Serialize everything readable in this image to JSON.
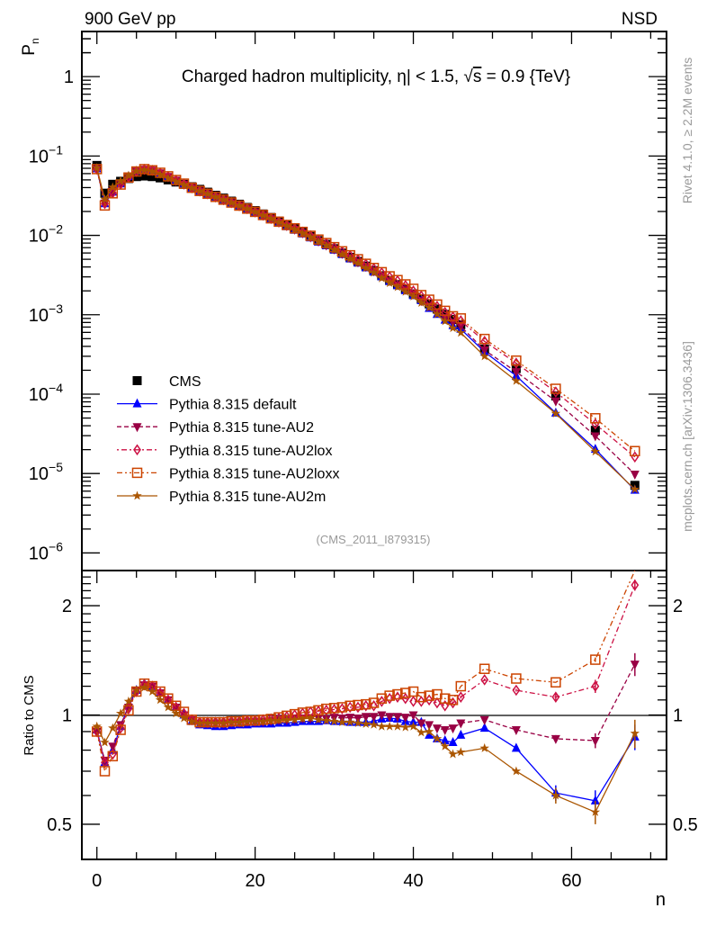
{
  "header": {
    "left": "900 GeV pp",
    "right": "NSD"
  },
  "side_labels": {
    "rivet": "Rivet 4.1.0, ≥ 2.2M events",
    "mcplots": "mcplots.cern.ch [arXiv:1306.3436]"
  },
  "chart_data": [
    {
      "type": "scatter",
      "panel": "main",
      "title": "Charged hadron multiplicity, η| < 1.5, √s = 0.9 {TeV}",
      "title_parts": {
        "prefix": "Charged hadron multiplicity, ",
        "eta": "η",
        "mid": "| < 1.5, ",
        "sqrt": "√",
        "s": "s",
        "suffix": " = 0.9 {TeV}"
      },
      "ylabel": "P",
      "ylabel_sub": "n",
      "xlabel": "n",
      "yscale": "log",
      "ylim": [
        6e-07,
        3.7
      ],
      "xlim": [
        -1.9,
        72
      ],
      "ytick_labels": [
        {
          "value": 1,
          "base": "1",
          "exp": ""
        },
        {
          "value": 0.1,
          "base": "10",
          "exp": "−1"
        },
        {
          "value": 0.01,
          "base": "10",
          "exp": "−2"
        },
        {
          "value": 0.001,
          "base": "10",
          "exp": "−3"
        },
        {
          "value": 0.0001,
          "base": "10",
          "exp": "−4"
        },
        {
          "value": 1e-05,
          "base": "10",
          "exp": "−5"
        },
        {
          "value": 1e-06,
          "base": "10",
          "exp": "−6"
        }
      ],
      "annotation": "(CMS_2011_I879315)",
      "legend_position": "lower-left",
      "x": [
        0,
        1,
        2,
        3,
        4,
        5,
        6,
        7,
        8,
        9,
        10,
        11,
        12,
        13,
        14,
        15,
        16,
        17,
        18,
        19,
        20,
        21,
        22,
        23,
        24,
        25,
        26,
        27,
        28,
        29,
        30,
        31,
        32,
        33,
        34,
        35,
        36,
        37,
        38,
        39,
        40,
        41,
        42,
        43,
        44,
        45,
        46,
        49,
        53,
        58,
        63,
        68
      ],
      "cms_values": [
        0.076,
        0.034,
        0.044,
        0.048,
        0.052,
        0.055,
        0.056,
        0.055,
        0.053,
        0.05,
        0.047,
        0.044,
        0.041,
        0.038,
        0.035,
        0.032,
        0.0295,
        0.027,
        0.0247,
        0.0225,
        0.0205,
        0.0186,
        0.0168,
        0.0151,
        0.0136,
        0.0122,
        0.0109,
        0.0097,
        0.0086,
        0.0077,
        0.0068,
        0.006,
        0.0053,
        0.0047,
        0.0041,
        0.0036,
        0.0031,
        0.0027,
        0.0024,
        0.0021,
        0.00183,
        0.00158,
        0.00137,
        0.00118,
        0.00101,
        0.00087,
        0.00075,
        0.00037,
        0.00021,
        9.5e-05,
        3.5e-05,
        7.1e-06
      ]
    },
    {
      "type": "line",
      "panel": "ratio",
      "ylabel": "Ratio to CMS",
      "xlabel": "n",
      "yscale": "log",
      "ylim": [
        0.4,
        2.5
      ],
      "xlim": [
        -1.9,
        72
      ],
      "reference": 1,
      "ytick_labels": [
        {
          "value": 2,
          "label": "2"
        },
        {
          "value": 1,
          "label": "1"
        },
        {
          "value": 0.5,
          "label": "0.5"
        }
      ],
      "xtick_labels": [
        {
          "value": 0,
          "label": "0"
        },
        {
          "value": 20,
          "label": "20"
        },
        {
          "value": 40,
          "label": "40"
        },
        {
          "value": 60,
          "label": "60"
        }
      ],
      "x": [
        0,
        1,
        2,
        3,
        4,
        5,
        6,
        7,
        8,
        9,
        10,
        11,
        12,
        13,
        14,
        15,
        16,
        17,
        18,
        19,
        20,
        21,
        22,
        23,
        24,
        25,
        26,
        27,
        28,
        29,
        30,
        31,
        32,
        33,
        34,
        35,
        36,
        37,
        38,
        39,
        40,
        41,
        42,
        43,
        44,
        45,
        46,
        49,
        53,
        58,
        63,
        68
      ],
      "series": [
        {
          "name": "CMS",
          "key": "cms",
          "color": "#000000",
          "marker": "square",
          "dash": "none",
          "legend": "CMS"
        },
        {
          "name": "Pythia 8.315 default",
          "key": "default",
          "color": "#0000ff",
          "marker": "triangle-up",
          "dash": "solid",
          "ratio": [
            0.91,
            0.74,
            0.8,
            0.93,
            1.06,
            1.17,
            1.22,
            1.2,
            1.15,
            1.1,
            1.05,
            1.0,
            0.96,
            0.94,
            0.935,
            0.93,
            0.93,
            0.935,
            0.94,
            0.94,
            0.945,
            0.945,
            0.945,
            0.95,
            0.95,
            0.955,
            0.96,
            0.96,
            0.96,
            0.965,
            0.96,
            0.96,
            0.955,
            0.955,
            0.955,
            0.96,
            0.975,
            0.98,
            0.975,
            0.96,
            0.955,
            0.955,
            0.88,
            0.86,
            0.85,
            0.84,
            0.88,
            0.92,
            0.81,
            0.61,
            0.58,
            0.87
          ],
          "errors": [
            0,
            0,
            0,
            0,
            0,
            0,
            0,
            0,
            0,
            0,
            0,
            0,
            0,
            0,
            0,
            0,
            0,
            0,
            0,
            0,
            0,
            0,
            0,
            0,
            0,
            0,
            0,
            0,
            0,
            0,
            0,
            0,
            0,
            0,
            0,
            0,
            0,
            0,
            0,
            0,
            0,
            0,
            0,
            0,
            0,
            0,
            0,
            0,
            0,
            0.03,
            0.04,
            0.07
          ]
        },
        {
          "name": "Pythia 8.315 tune-AU2",
          "key": "au2",
          "color": "#990044",
          "marker": "triangle-down",
          "dash": "dashed",
          "ratio": [
            0.9,
            0.75,
            0.82,
            0.94,
            1.05,
            1.17,
            1.21,
            1.2,
            1.15,
            1.1,
            1.05,
            1.0,
            0.97,
            0.95,
            0.95,
            0.95,
            0.95,
            0.955,
            0.955,
            0.96,
            0.96,
            0.96,
            0.965,
            0.97,
            0.97,
            0.975,
            0.98,
            0.98,
            0.98,
            0.975,
            0.985,
            0.98,
            0.985,
            0.98,
            0.99,
            0.99,
            1.0,
            0.99,
            0.99,
            0.985,
            1.0,
            0.95,
            0.94,
            0.92,
            0.91,
            0.92,
            0.95,
            0.97,
            0.91,
            0.86,
            0.85,
            1.38
          ],
          "errors": [
            0,
            0,
            0,
            0,
            0,
            0,
            0,
            0,
            0,
            0,
            0,
            0,
            0,
            0,
            0,
            0,
            0,
            0,
            0,
            0,
            0,
            0,
            0,
            0,
            0,
            0,
            0,
            0,
            0,
            0,
            0,
            0,
            0,
            0,
            0,
            0,
            0,
            0,
            0,
            0,
            0,
            0,
            0,
            0,
            0,
            0.01,
            0.01,
            0.01,
            0.01,
            0.02,
            0.04,
            0.1
          ]
        },
        {
          "name": "Pythia 8.315 tune-AU2lox",
          "key": "au2lox",
          "color": "#cc1144",
          "marker": "diamond-open",
          "dash": "dashdot",
          "ratio": [
            0.9,
            0.74,
            0.78,
            0.92,
            1.04,
            1.16,
            1.21,
            1.2,
            1.15,
            1.1,
            1.05,
            1.01,
            0.97,
            0.955,
            0.955,
            0.955,
            0.955,
            0.96,
            0.96,
            0.965,
            0.965,
            0.97,
            0.975,
            0.98,
            0.99,
            1.0,
            1.01,
            1.02,
            1.025,
            1.03,
            1.035,
            1.04,
            1.05,
            1.05,
            1.06,
            1.06,
            1.09,
            1.11,
            1.12,
            1.11,
            1.09,
            1.09,
            1.1,
            1.08,
            1.06,
            1.08,
            1.12,
            1.25,
            1.17,
            1.12,
            1.2,
            2.28
          ],
          "errors": [
            0,
            0,
            0,
            0,
            0,
            0,
            0,
            0,
            0,
            0,
            0,
            0,
            0,
            0,
            0,
            0,
            0,
            0,
            0,
            0,
            0,
            0,
            0,
            0,
            0,
            0,
            0,
            0,
            0,
            0,
            0,
            0,
            0,
            0,
            0,
            0,
            0,
            0,
            0,
            0,
            0,
            0,
            0,
            0,
            0,
            0.01,
            0.01,
            0.01,
            0.01,
            0.03,
            0.05,
            0.08
          ]
        },
        {
          "name": "Pythia 8.315 tune-AU2loxx",
          "key": "au2loxx",
          "color": "#cc4400",
          "marker": "square-open",
          "dash": "dashdotdot",
          "ratio": [
            0.9,
            0.7,
            0.77,
            0.91,
            1.03,
            1.16,
            1.22,
            1.2,
            1.16,
            1.11,
            1.06,
            1.02,
            0.97,
            0.955,
            0.955,
            0.955,
            0.955,
            0.96,
            0.96,
            0.965,
            0.965,
            0.97,
            0.975,
            0.985,
            0.995,
            1.005,
            1.015,
            1.02,
            1.03,
            1.04,
            1.045,
            1.05,
            1.06,
            1.065,
            1.07,
            1.08,
            1.11,
            1.13,
            1.14,
            1.15,
            1.16,
            1.12,
            1.13,
            1.14,
            1.11,
            1.1,
            1.2,
            1.34,
            1.26,
            1.23,
            1.42,
            2.7
          ],
          "errors": [
            0,
            0,
            0,
            0,
            0,
            0,
            0,
            0,
            0,
            0,
            0,
            0,
            0,
            0,
            0,
            0,
            0,
            0,
            0,
            0,
            0,
            0,
            0,
            0,
            0,
            0,
            0,
            0,
            0,
            0,
            0,
            0,
            0,
            0,
            0,
            0,
            0,
            0,
            0,
            0,
            0,
            0,
            0,
            0,
            0,
            0,
            0,
            0,
            0,
            0,
            0.02,
            0
          ]
        },
        {
          "name": "Pythia 8.315 tune-AU2m",
          "key": "au2m",
          "color": "#aa5500",
          "marker": "star",
          "dash": "solid",
          "ratio": [
            0.93,
            0.84,
            0.92,
            1.01,
            1.09,
            1.17,
            1.19,
            1.16,
            1.1,
            1.05,
            1.01,
            0.98,
            0.96,
            0.95,
            0.95,
            0.95,
            0.95,
            0.955,
            0.955,
            0.96,
            0.96,
            0.96,
            0.965,
            0.965,
            0.97,
            0.97,
            0.975,
            0.98,
            0.97,
            0.965,
            0.96,
            0.955,
            0.955,
            0.95,
            0.945,
            0.94,
            0.93,
            0.93,
            0.93,
            0.925,
            0.93,
            0.895,
            0.9,
            0.86,
            0.82,
            0.78,
            0.79,
            0.81,
            0.7,
            0.6,
            0.54,
            0.89
          ],
          "errors": [
            0,
            0,
            0,
            0,
            0,
            0,
            0,
            0,
            0,
            0,
            0,
            0,
            0,
            0,
            0,
            0,
            0,
            0,
            0,
            0,
            0,
            0,
            0,
            0,
            0,
            0,
            0,
            0,
            0,
            0,
            0,
            0,
            0,
            0,
            0,
            0,
            0,
            0,
            0,
            0,
            0,
            0,
            0,
            0,
            0.01,
            0.01,
            0.01,
            0.01,
            0.01,
            0.03,
            0.04,
            0.08
          ]
        }
      ]
    }
  ]
}
